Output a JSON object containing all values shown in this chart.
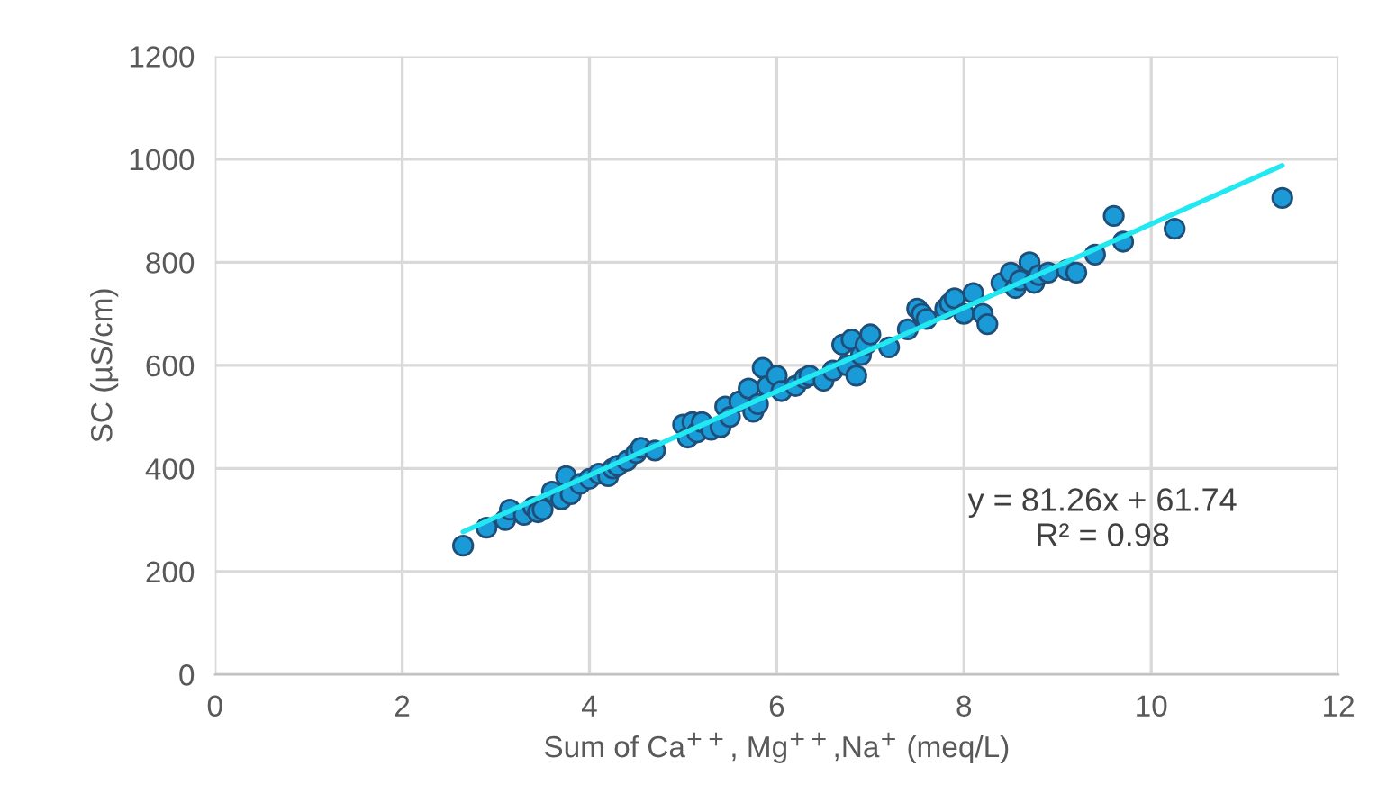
{
  "chart_data": {
    "type": "scatter",
    "xlabel": "Sum of Ca$^{++}$, Mg$^{++}$,Na$^{+}$ (meq/L)",
    "ylabel": "SC (µS/cm)",
    "xlim": [
      0,
      12
    ],
    "xticks": [
      0,
      2,
      4,
      6,
      8,
      10,
      12
    ],
    "ylim": [
      0,
      1200
    ],
    "yticks": [
      0,
      200,
      400,
      600,
      800,
      1000,
      1200
    ],
    "grid": true,
    "series": [
      {
        "color": "#1a9ad6",
        "marker": "circle",
        "x": [
          2.65,
          2.9,
          3.1,
          3.15,
          3.3,
          3.4,
          3.45,
          3.5,
          3.6,
          3.7,
          3.75,
          3.8,
          3.9,
          4.0,
          4.1,
          4.2,
          4.25,
          4.3,
          4.4,
          4.5,
          4.55,
          4.7,
          5.0,
          5.05,
          5.1,
          5.15,
          5.2,
          5.3,
          5.4,
          5.45,
          5.5,
          5.6,
          5.7,
          5.75,
          5.8,
          5.85,
          5.9,
          6.0,
          6.05,
          6.2,
          6.3,
          6.35,
          6.5,
          6.6,
          6.7,
          6.75,
          6.8,
          6.85,
          6.9,
          6.95,
          7.0,
          7.2,
          7.4,
          7.5,
          7.55,
          7.6,
          7.8,
          7.85,
          7.9,
          8.0,
          8.1,
          8.2,
          8.25,
          8.4,
          8.5,
          8.55,
          8.6,
          8.7,
          8.75,
          8.8,
          8.9,
          9.1,
          9.2,
          9.4,
          9.6,
          9.7,
          10.25,
          11.4
        ],
        "values": [
          250,
          285,
          300,
          320,
          310,
          325,
          315,
          320,
          355,
          340,
          385,
          350,
          370,
          380,
          390,
          385,
          400,
          405,
          415,
          430,
          440,
          435,
          485,
          460,
          490,
          470,
          490,
          475,
          480,
          520,
          500,
          530,
          555,
          510,
          525,
          595,
          560,
          580,
          550,
          560,
          575,
          580,
          570,
          590,
          640,
          600,
          650,
          580,
          620,
          640,
          660,
          635,
          670,
          710,
          700,
          690,
          710,
          720,
          730,
          700,
          740,
          700,
          680,
          760,
          780,
          750,
          765,
          800,
          760,
          775,
          780,
          785,
          780,
          815,
          890,
          840,
          865,
          925
        ]
      },
      {
        "type": "line",
        "color": "#22e8f2",
        "x": [
          2.65,
          11.4
        ],
        "values": [
          277,
          988
        ]
      }
    ],
    "annotations": [
      "y = 81.26x + 61.74\nR² = 0.98"
    ]
  }
}
